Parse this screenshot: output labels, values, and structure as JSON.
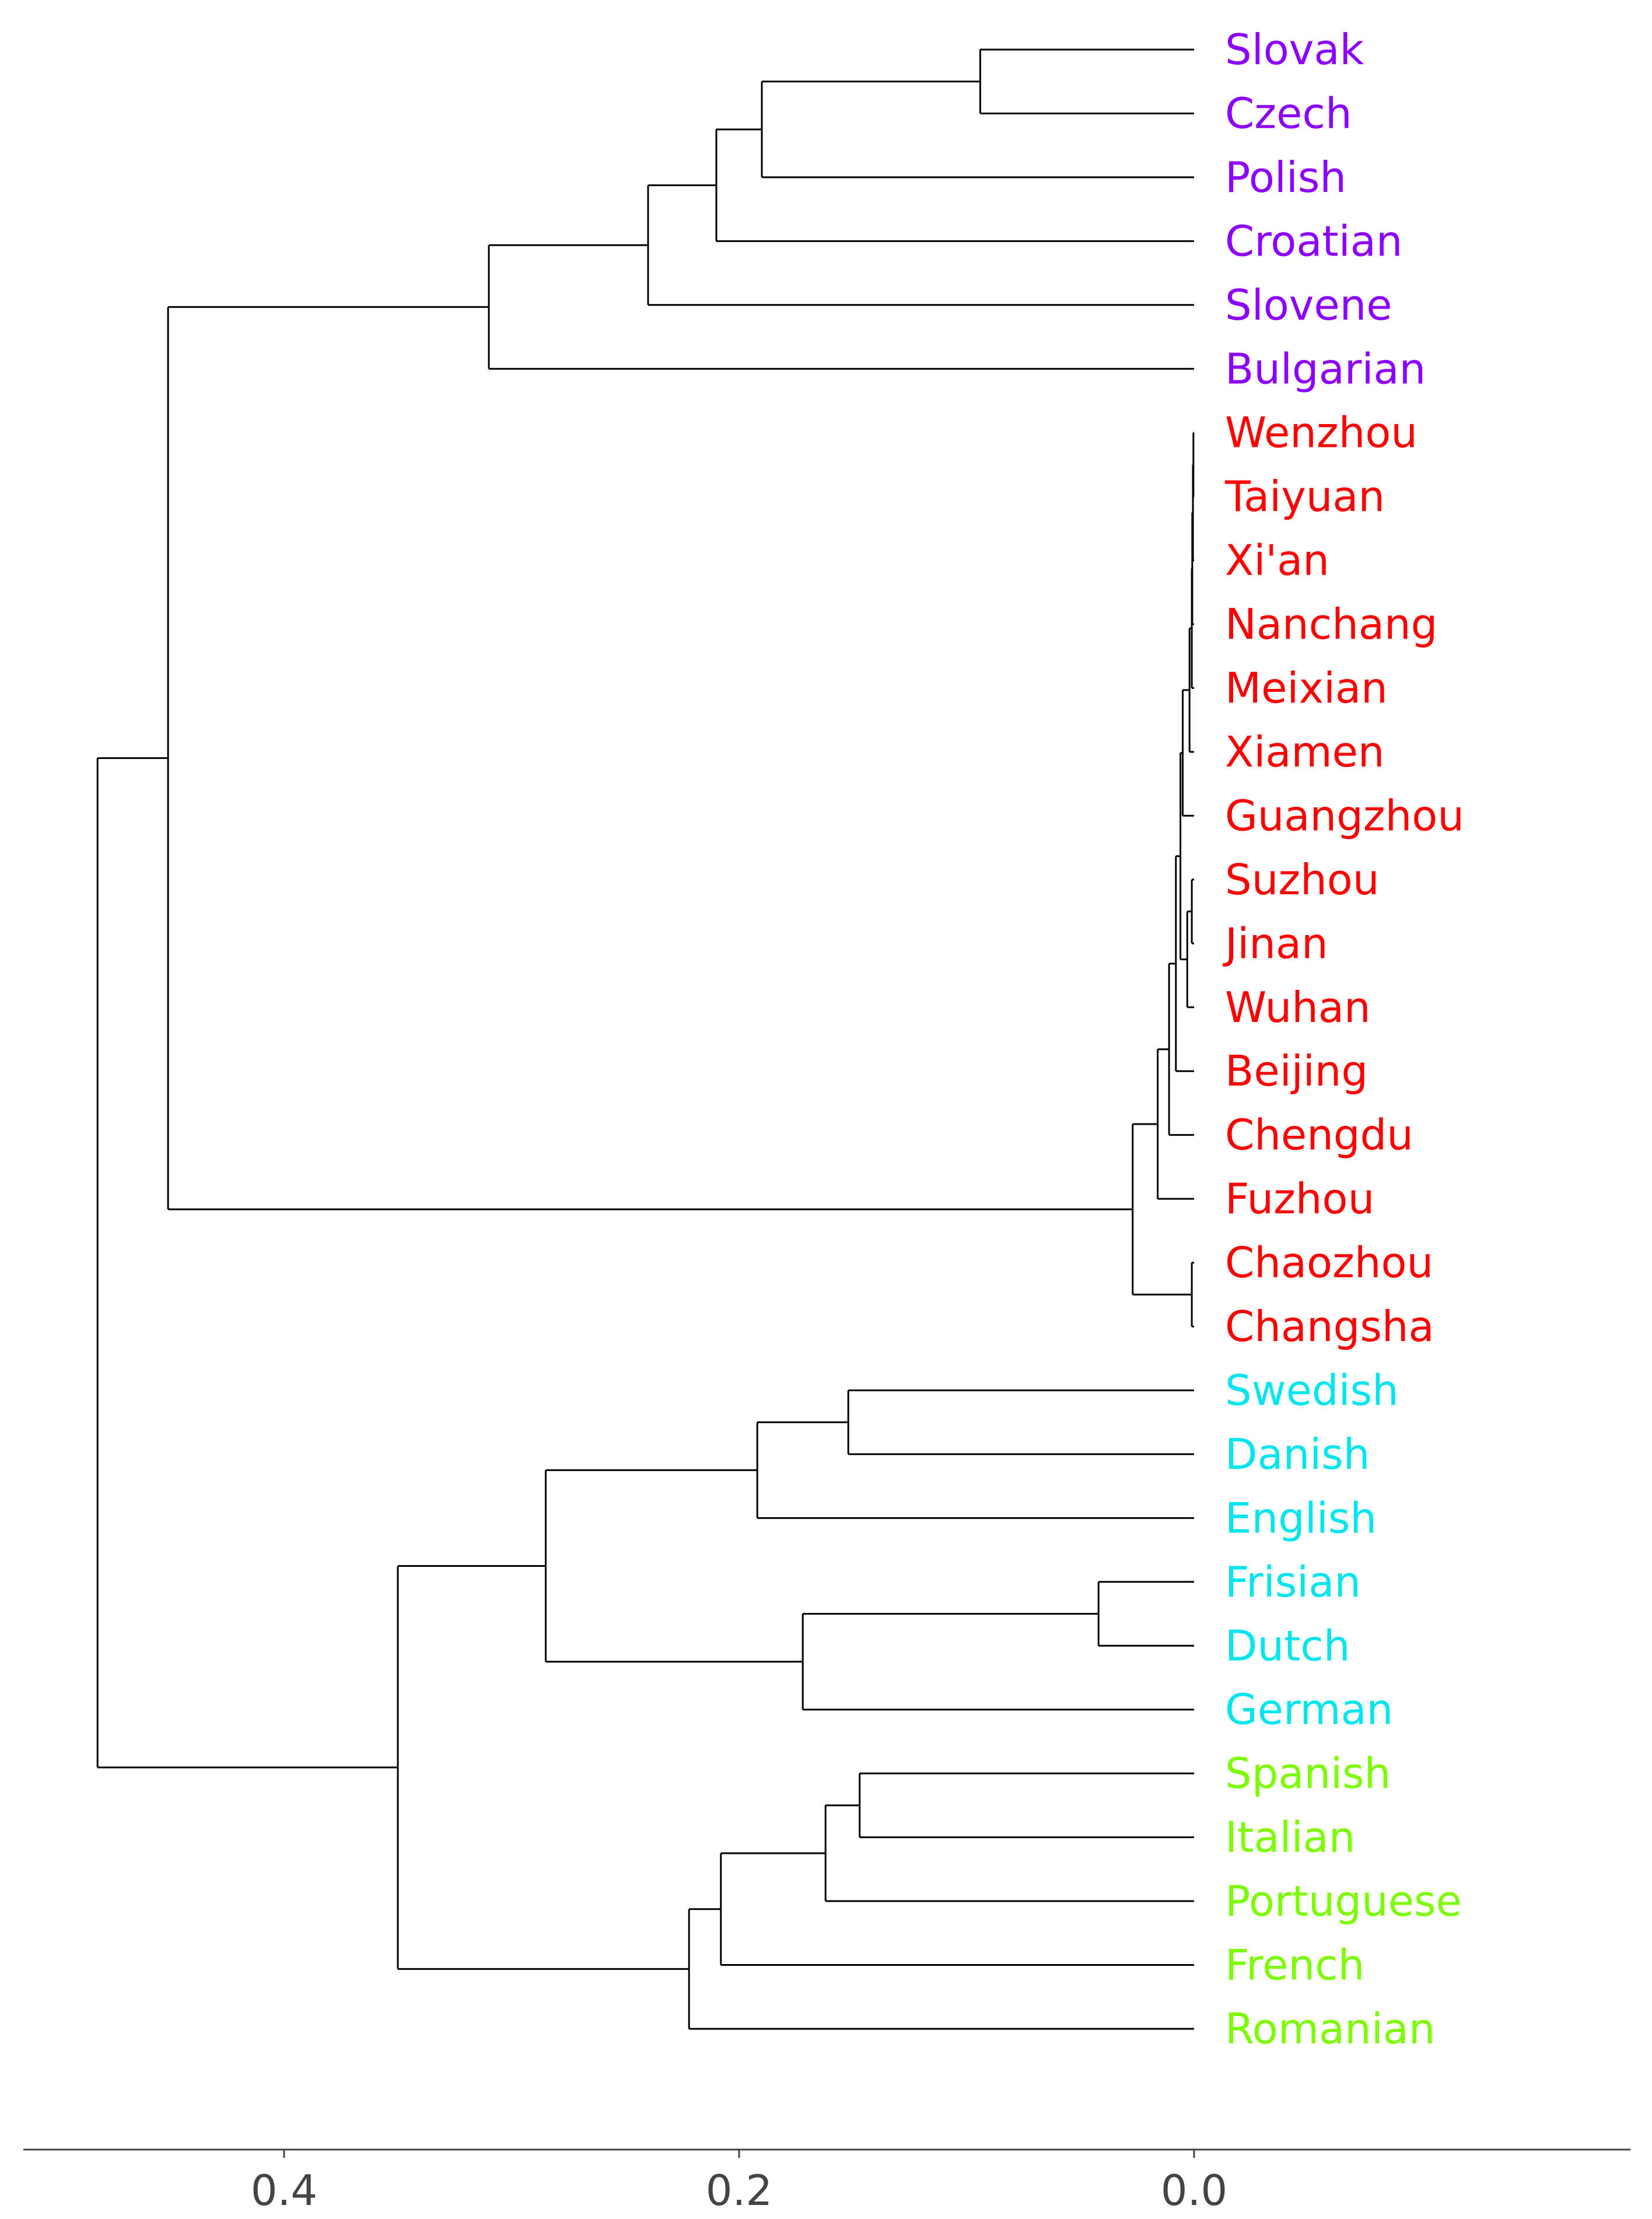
{
  "chart_data": {
    "type": "dendrogram",
    "orientation": "right",
    "xlim": [
      0.51,
      -0.19
    ],
    "x_ticks": [
      0.4,
      0.2,
      0.0
    ],
    "x_tick_labels": [
      "0.4",
      "0.2",
      "0.0"
    ],
    "grid": false,
    "leaves": [
      {
        "name": "Slovak",
        "color": "#8b00ff"
      },
      {
        "name": "Czech",
        "color": "#8b00ff"
      },
      {
        "name": "Polish",
        "color": "#8b00ff"
      },
      {
        "name": "Croatian",
        "color": "#8b00ff"
      },
      {
        "name": "Slovene",
        "color": "#8b00ff"
      },
      {
        "name": "Bulgarian",
        "color": "#8b00ff"
      },
      {
        "name": "Wenzhou",
        "color": "#ff0000"
      },
      {
        "name": "Taiyuan",
        "color": "#ff0000"
      },
      {
        "name": "Xi'an",
        "color": "#ff0000"
      },
      {
        "name": "Nanchang",
        "color": "#ff0000"
      },
      {
        "name": "Meixian",
        "color": "#ff0000"
      },
      {
        "name": "Xiamen",
        "color": "#ff0000"
      },
      {
        "name": "Guangzhou",
        "color": "#ff0000"
      },
      {
        "name": "Suzhou",
        "color": "#ff0000"
      },
      {
        "name": "Jinan",
        "color": "#ff0000"
      },
      {
        "name": "Wuhan",
        "color": "#ff0000"
      },
      {
        "name": "Beijing",
        "color": "#ff0000"
      },
      {
        "name": "Chengdu",
        "color": "#ff0000"
      },
      {
        "name": "Fuzhou",
        "color": "#ff0000"
      },
      {
        "name": "Chaozhou",
        "color": "#ff0000"
      },
      {
        "name": "Changsha",
        "color": "#ff0000"
      },
      {
        "name": "Swedish",
        "color": "#00e5ee"
      },
      {
        "name": "Danish",
        "color": "#00e5ee"
      },
      {
        "name": "English",
        "color": "#00e5ee"
      },
      {
        "name": "Frisian",
        "color": "#00e5ee"
      },
      {
        "name": "Dutch",
        "color": "#00e5ee"
      },
      {
        "name": "German",
        "color": "#00e5ee"
      },
      {
        "name": "Spanish",
        "color": "#7cfc00"
      },
      {
        "name": "Italian",
        "color": "#7cfc00"
      },
      {
        "name": "Portuguese",
        "color": "#7cfc00"
      },
      {
        "name": "French",
        "color": "#7cfc00"
      },
      {
        "name": "Romanian",
        "color": "#7cfc00"
      }
    ],
    "merges": [
      {
        "a": "L0",
        "b": "L1",
        "height": 0.094
      },
      {
        "a": "N0",
        "b": "L2",
        "height": 0.19
      },
      {
        "a": "N1",
        "b": "L3",
        "height": 0.21
      },
      {
        "a": "N2",
        "b": "L4",
        "height": 0.24
      },
      {
        "a": "N3",
        "b": "L5",
        "height": 0.31
      },
      {
        "a": "L6",
        "b": "L7",
        "height": 0.0003
      },
      {
        "a": "N5",
        "b": "L8",
        "height": 0.0005
      },
      {
        "a": "N6",
        "b": "L9",
        "height": 0.0008
      },
      {
        "a": "N7",
        "b": "L10",
        "height": 0.001
      },
      {
        "a": "N8",
        "b": "L11",
        "height": 0.002
      },
      {
        "a": "N9",
        "b": "L12",
        "height": 0.005
      },
      {
        "a": "L13",
        "b": "L14",
        "height": 0.001
      },
      {
        "a": "N11",
        "b": "L15",
        "height": 0.003
      },
      {
        "a": "N10",
        "b": "N12",
        "height": 0.006
      },
      {
        "a": "N13",
        "b": "L16",
        "height": 0.008
      },
      {
        "a": "N14",
        "b": "L17",
        "height": 0.011
      },
      {
        "a": "N15",
        "b": "L18",
        "height": 0.016
      },
      {
        "a": "L19",
        "b": "L20",
        "height": 0.001
      },
      {
        "a": "N16",
        "b": "N17",
        "height": 0.027
      },
      {
        "a": "L21",
        "b": "L22",
        "height": 0.152
      },
      {
        "a": "N19",
        "b": "L23",
        "height": 0.192
      },
      {
        "a": "L24",
        "b": "L25",
        "height": 0.042
      },
      {
        "a": "N21",
        "b": "L26",
        "height": 0.172
      },
      {
        "a": "N20",
        "b": "N22",
        "height": 0.285
      },
      {
        "a": "L27",
        "b": "L28",
        "height": 0.147
      },
      {
        "a": "N24",
        "b": "L29",
        "height": 0.162
      },
      {
        "a": "N25",
        "b": "L30",
        "height": 0.208
      },
      {
        "a": "N26",
        "b": "L31",
        "height": 0.222
      },
      {
        "a": "N23",
        "b": "N27",
        "height": 0.35
      },
      {
        "a": "N4",
        "b": "N18",
        "height": 0.451
      },
      {
        "a": "N29",
        "b": "N28",
        "height": 0.482
      }
    ]
  }
}
